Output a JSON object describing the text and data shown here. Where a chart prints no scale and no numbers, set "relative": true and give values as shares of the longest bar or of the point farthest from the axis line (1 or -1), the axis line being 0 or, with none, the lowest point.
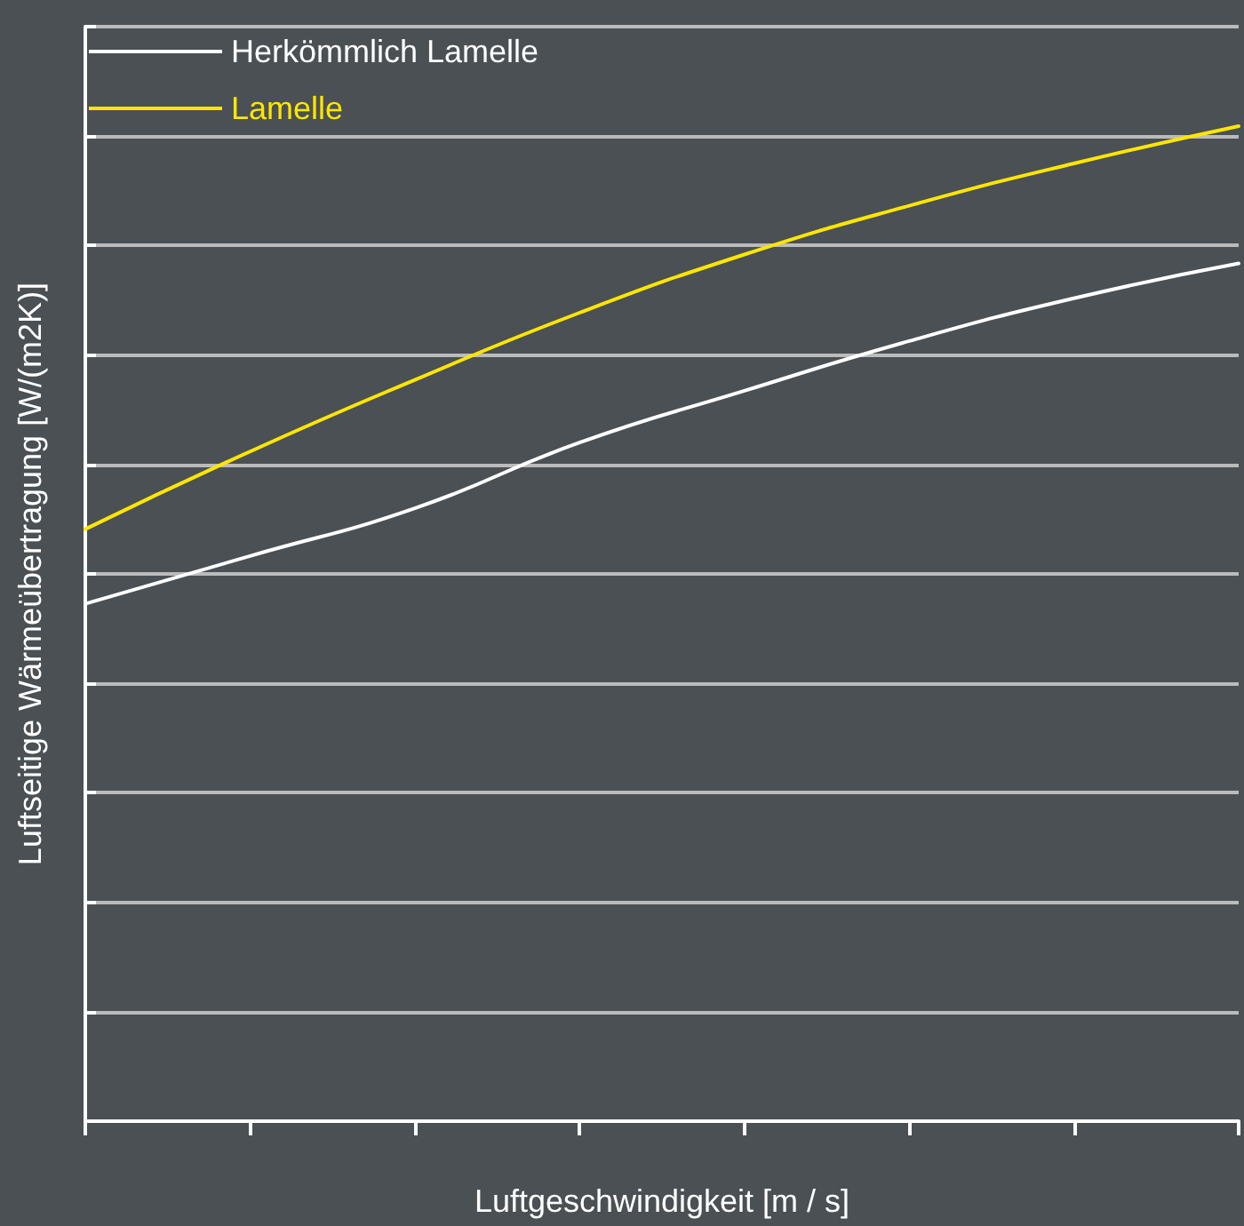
{
  "chart_data": {
    "type": "line",
    "relative": true,
    "xlabel": "Luftgeschwindigkeit [m / s]",
    "ylabel": "Luftseitige Wärmeübertragung [W/(m2K)]",
    "categories": [
      null,
      null,
      null,
      null,
      null,
      null,
      null,
      null
    ],
    "series": [
      {
        "name": "Herkömmlich Lamelle",
        "color": "#ffffff",
        "values": [
          0.52,
          0.568,
          0.616,
          0.682,
          0.734,
          0.784,
          0.827,
          0.862
        ]
      },
      {
        "name": "Lamelle",
        "color": "#ffe600",
        "values": [
          0.595,
          0.673,
          0.745,
          0.8125,
          0.871,
          0.92,
          0.9625,
          1
        ]
      }
    ],
    "grid": "y",
    "legend": "top left",
    "marker": "none",
    "line_style": "solid"
  }
}
